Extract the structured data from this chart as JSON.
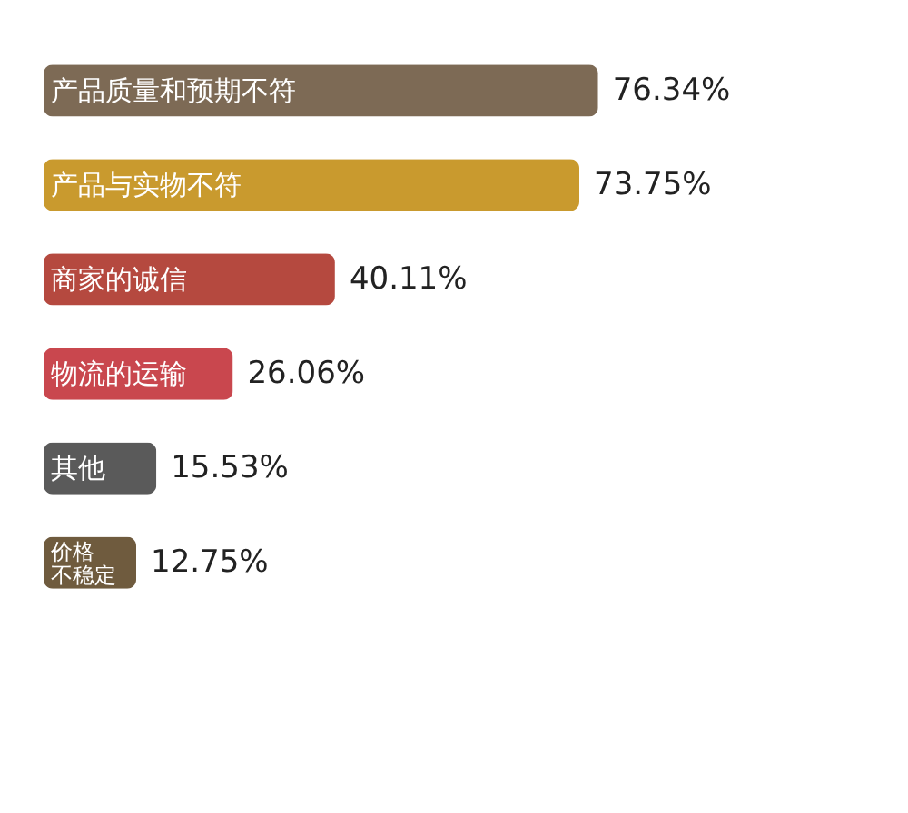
{
  "chart_data": {
    "type": "bar",
    "orientation": "horizontal",
    "categories": [
      "产品质量和预期不符",
      "产品与实物不符",
      "商家的诚信",
      "物流的运输",
      "其他",
      "价格不稳定"
    ],
    "values": [
      76.34,
      73.75,
      40.11,
      26.06,
      15.53,
      12.75
    ],
    "colors": [
      "#7d6a55",
      "#c99a2e",
      "#b5493f",
      "#c9474e",
      "#5a5a5a",
      "#6f5b3e"
    ],
    "value_labels": [
      "76.34%",
      "73.75%",
      "40.11%",
      "26.06%",
      "15.53%",
      "12.75%"
    ]
  }
}
